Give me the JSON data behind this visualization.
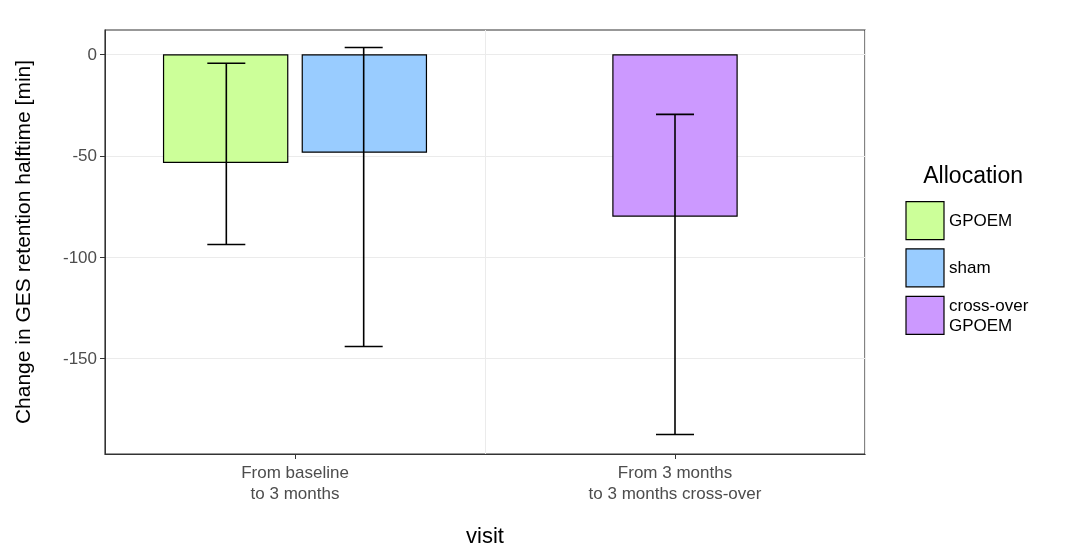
{
  "chart_data": {
    "type": "bar",
    "xlabel": "visit",
    "ylabel": "Change in GES retention halftime [min]",
    "legend_title": "Allocation",
    "legend": "right",
    "grid": true,
    "categories": [
      "From baseline\nto 3 months",
      "From 3 months\nto 3 months cross-over"
    ],
    "ylim": [
      -197,
      12
    ],
    "yticks": [
      0,
      -50,
      -100,
      -150
    ],
    "series": [
      {
        "name": "GPOEM",
        "color": "#ccff99",
        "values": [
          -53.5,
          null
        ],
        "errors": [
          [
            -93.7,
            -4.4
          ],
          null
        ]
      },
      {
        "name": "sham",
        "color": "#99ccff",
        "values": [
          -48.5,
          null
        ],
        "errors": [
          [
            -144,
            3.4
          ],
          null
        ]
      },
      {
        "name": "cross-over GPOEM",
        "color": "#cc99ff",
        "values": [
          null,
          -80
        ],
        "errors": [
          null,
          [
            -187.4,
            -29.6
          ]
        ]
      }
    ]
  }
}
